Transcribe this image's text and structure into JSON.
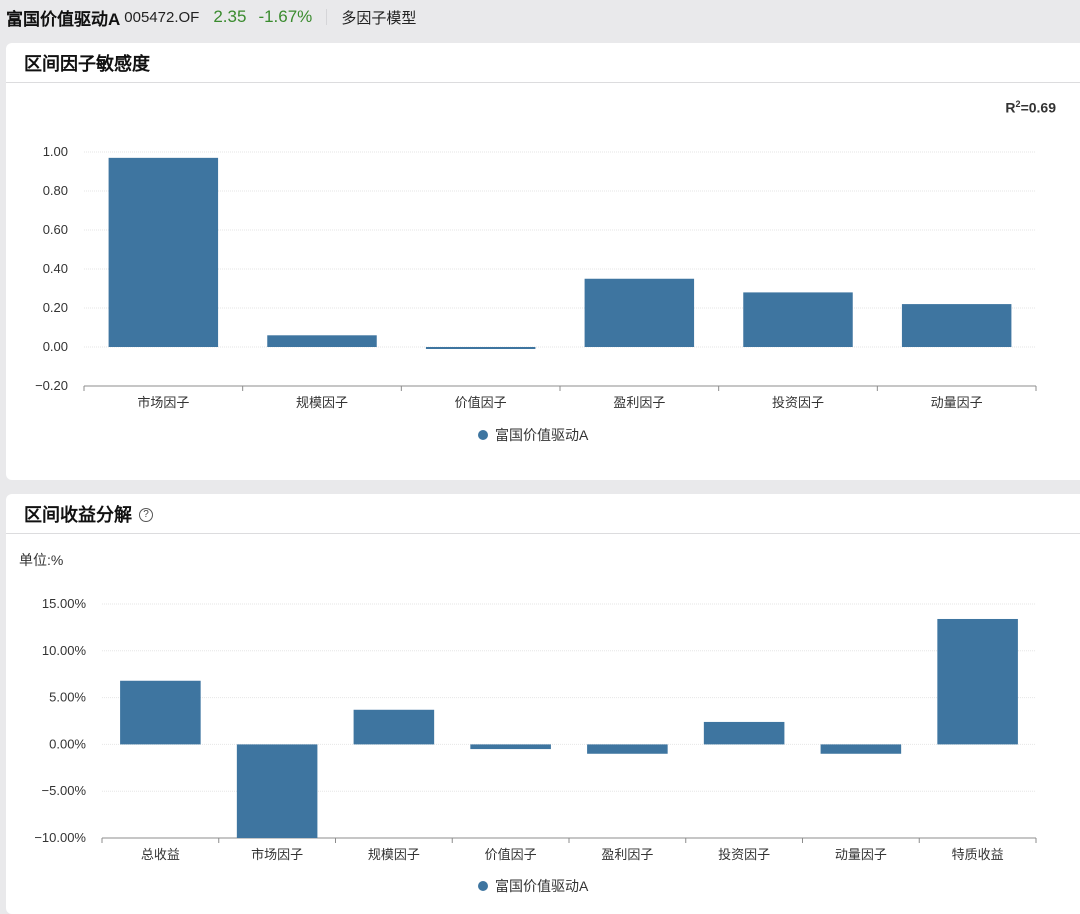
{
  "header": {
    "fund_name": "富国价值驱动A",
    "fund_code": "005472.OF",
    "price": "2.35",
    "change": "-1.67%",
    "model_link": "多因子模型",
    "up_color": "#3a8b2e"
  },
  "sensitivity_panel": {
    "title": "区间因子敏感度",
    "r2_base": "R",
    "r2_exp": "2",
    "r2_value": "=0.69"
  },
  "return_panel": {
    "title": "区间收益分解",
    "help_icon": "question-circle-icon",
    "unit_label": "单位:%"
  },
  "chart_data": [
    {
      "type": "bar",
      "categories": [
        "市场因子",
        "规模因子",
        "价值因子",
        "盈利因子",
        "投资因子",
        "动量因子"
      ],
      "series": [
        {
          "name": "富国价值驱动A",
          "values": [
            0.97,
            0.06,
            -0.01,
            0.35,
            0.28,
            0.22
          ],
          "color": "#3e75a0"
        }
      ],
      "ylim": [
        -0.2,
        1.0
      ],
      "yticks": [
        -0.2,
        0,
        0.2,
        0.4,
        0.6,
        0.8,
        1.0
      ],
      "ytick_labels": [
        "−0.20",
        "0.00",
        "0.20",
        "0.40",
        "0.60",
        "0.80",
        "1.00"
      ],
      "grid": true,
      "legend": "bottom-center"
    },
    {
      "type": "bar",
      "categories": [
        "总收益",
        "市场因子",
        "规模因子",
        "价值因子",
        "盈利因子",
        "投资因子",
        "动量因子",
        "特质收益"
      ],
      "series": [
        {
          "name": "富国价值驱动A",
          "values": [
            6.8,
            -10.0,
            3.7,
            -0.5,
            -1.0,
            2.4,
            -1.0,
            13.4
          ],
          "color": "#3e75a0"
        }
      ],
      "ylim": [
        -10,
        15
      ],
      "yticks": [
        -10,
        -5,
        0,
        5,
        10,
        15
      ],
      "ytick_labels": [
        "−10.00%",
        "−5.00%",
        "0.00%",
        "5.00%",
        "10.00%",
        "15.00%"
      ],
      "grid": true,
      "legend": "bottom-center"
    }
  ]
}
